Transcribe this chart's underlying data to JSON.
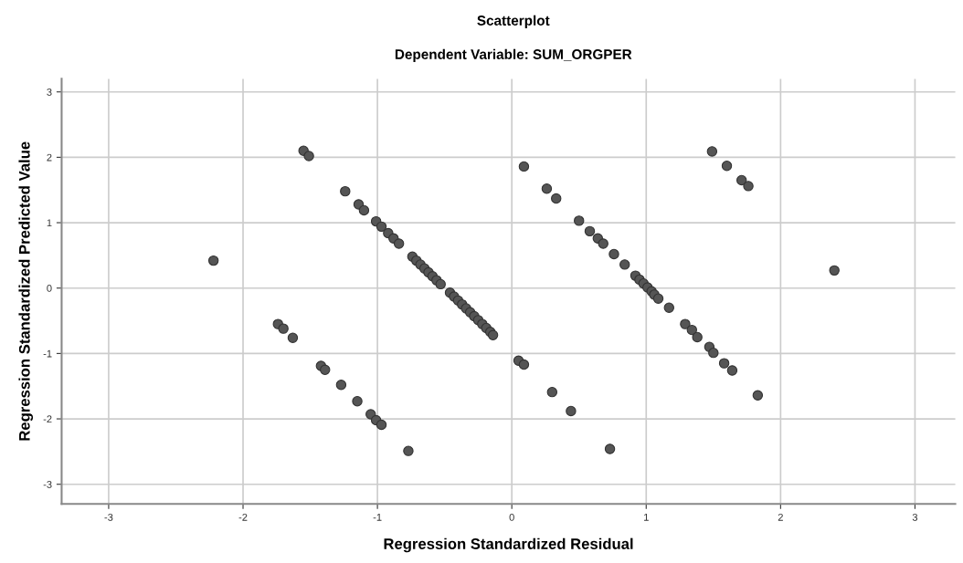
{
  "chart_data": {
    "type": "scatter",
    "title": "Scatterplot",
    "subtitle": "Dependent Variable: SUM_ORGPER",
    "xlabel": "Regression Standardized Residual",
    "ylabel": "Regression Standardized Predicted Value",
    "xlim": [
      -3.35,
      3.3
    ],
    "ylim": [
      -3.3,
      3.2
    ],
    "xticks": [
      -3,
      -2,
      -1,
      0,
      1,
      2,
      3
    ],
    "yticks": [
      -3,
      -2,
      -1,
      0,
      1,
      2,
      3
    ],
    "grid": true,
    "marker": "circle",
    "series": [
      {
        "color": "#555555",
        "x": [
          -2.22,
          2.4,
          -1.55,
          -1.51,
          -1.24,
          -1.14,
          -1.1,
          -1.01,
          -0.97,
          -0.92,
          -0.88,
          -0.84,
          -0.74,
          -0.71,
          -0.68,
          -0.65,
          -0.62,
          -0.59,
          -0.56,
          -0.53,
          -0.46,
          -0.43,
          -0.4,
          -0.37,
          -0.34,
          -0.31,
          -0.28,
          -0.25,
          -0.22,
          -0.19,
          -0.16,
          -0.14,
          -1.74,
          -1.7,
          -1.63,
          -1.42,
          -1.39,
          -1.27,
          -1.15,
          -1.05,
          -1.01,
          -0.97,
          -0.77,
          0.09,
          0.26,
          0.33,
          0.5,
          0.58,
          0.64,
          0.68,
          0.76,
          0.84,
          0.92,
          0.95,
          0.98,
          1.01,
          1.04,
          1.06,
          1.09,
          1.17,
          1.29,
          1.34,
          1.38,
          1.47,
          1.5,
          1.58,
          1.64,
          1.83,
          1.49,
          1.6,
          1.71,
          1.76,
          0.05,
          0.09,
          0.3,
          0.44,
          0.73
        ],
        "values": [
          0.42,
          0.27,
          2.1,
          2.02,
          1.48,
          1.28,
          1.19,
          1.02,
          0.94,
          0.84,
          0.76,
          0.68,
          0.48,
          0.42,
          0.36,
          0.3,
          0.24,
          0.18,
          0.12,
          0.06,
          -0.07,
          -0.13,
          -0.19,
          -0.25,
          -0.31,
          -0.37,
          -0.43,
          -0.49,
          -0.55,
          -0.61,
          -0.67,
          -0.72,
          -0.55,
          -0.62,
          -0.76,
          -1.19,
          -1.25,
          -1.48,
          -1.73,
          -1.93,
          -2.02,
          -2.09,
          -2.49,
          1.86,
          1.52,
          1.37,
          1.03,
          0.87,
          0.76,
          0.68,
          0.52,
          0.36,
          0.19,
          0.13,
          0.07,
          0.01,
          -0.05,
          -0.1,
          -0.16,
          -0.3,
          -0.55,
          -0.64,
          -0.75,
          -0.9,
          -0.99,
          -1.15,
          -1.26,
          -1.64,
          2.09,
          1.87,
          1.65,
          1.56,
          -1.11,
          -1.17,
          -1.59,
          -1.88,
          -2.46
        ]
      }
    ]
  }
}
